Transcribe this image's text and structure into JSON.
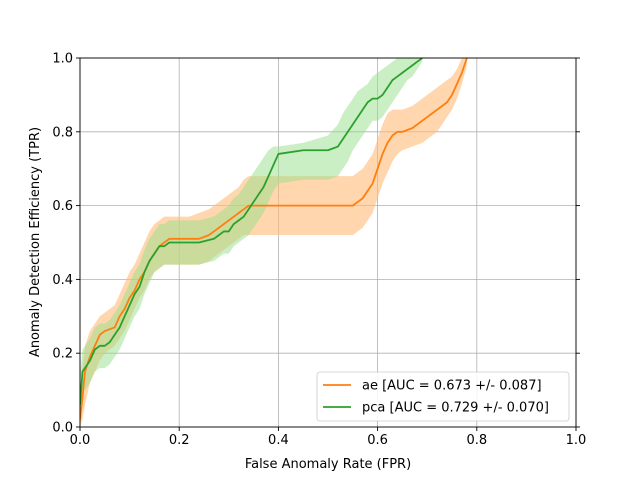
{
  "chart_data": {
    "type": "line",
    "xlabel": "False Anomaly Rate (FPR)",
    "ylabel": "Anomaly Detection Efficiency (TPR)",
    "xlim": [
      0.0,
      1.0
    ],
    "ylim": [
      0.0,
      1.0
    ],
    "xticks": [
      "0.0",
      "0.2",
      "0.4",
      "0.6",
      "0.8",
      "1.0"
    ],
    "yticks": [
      "0.0",
      "0.2",
      "0.4",
      "0.6",
      "0.8",
      "1.0"
    ],
    "grid": true,
    "legend_position": "lower-right",
    "series": [
      {
        "name": "ae [AUC = 0.673 +/- 0.087]",
        "color": "#ff7f0e",
        "band_color": "#ffbb78",
        "x": [
          0.0,
          0.005,
          0.01,
          0.02,
          0.03,
          0.04,
          0.05,
          0.07,
          0.08,
          0.09,
          0.1,
          0.11,
          0.12,
          0.13,
          0.14,
          0.15,
          0.16,
          0.17,
          0.18,
          0.2,
          0.22,
          0.24,
          0.26,
          0.27,
          0.28,
          0.29,
          0.3,
          0.31,
          0.32,
          0.33,
          0.34,
          0.36,
          0.4,
          0.5,
          0.55,
          0.56,
          0.57,
          0.58,
          0.59,
          0.6,
          0.61,
          0.62,
          0.63,
          0.64,
          0.65,
          0.67,
          0.69,
          0.7,
          0.71,
          0.72,
          0.73,
          0.74,
          0.75,
          0.76,
          0.77,
          0.78
        ],
        "y": [
          0.02,
          0.08,
          0.15,
          0.19,
          0.22,
          0.25,
          0.26,
          0.27,
          0.3,
          0.32,
          0.35,
          0.37,
          0.4,
          0.42,
          0.45,
          0.47,
          0.49,
          0.5,
          0.51,
          0.51,
          0.51,
          0.51,
          0.52,
          0.53,
          0.54,
          0.55,
          0.56,
          0.57,
          0.58,
          0.59,
          0.6,
          0.6,
          0.6,
          0.6,
          0.6,
          0.61,
          0.62,
          0.64,
          0.66,
          0.7,
          0.74,
          0.77,
          0.79,
          0.8,
          0.8,
          0.81,
          0.83,
          0.84,
          0.85,
          0.86,
          0.87,
          0.88,
          0.9,
          0.93,
          0.96,
          1.0
        ],
        "lower": [
          0.0,
          0.02,
          0.06,
          0.12,
          0.15,
          0.18,
          0.2,
          0.22,
          0.24,
          0.26,
          0.29,
          0.32,
          0.35,
          0.37,
          0.4,
          0.42,
          0.43,
          0.44,
          0.44,
          0.44,
          0.44,
          0.44,
          0.45,
          0.46,
          0.47,
          0.48,
          0.49,
          0.5,
          0.51,
          0.52,
          0.52,
          0.52,
          0.52,
          0.52,
          0.52,
          0.53,
          0.54,
          0.56,
          0.58,
          0.62,
          0.66,
          0.69,
          0.72,
          0.74,
          0.75,
          0.76,
          0.77,
          0.78,
          0.79,
          0.8,
          0.82,
          0.84,
          0.86,
          0.89,
          0.93,
          0.98
        ],
        "upper": [
          0.06,
          0.16,
          0.22,
          0.26,
          0.28,
          0.3,
          0.31,
          0.33,
          0.36,
          0.39,
          0.42,
          0.44,
          0.47,
          0.5,
          0.53,
          0.55,
          0.56,
          0.57,
          0.57,
          0.57,
          0.57,
          0.58,
          0.59,
          0.6,
          0.61,
          0.62,
          0.63,
          0.64,
          0.65,
          0.67,
          0.68,
          0.68,
          0.68,
          0.68,
          0.68,
          0.69,
          0.7,
          0.72,
          0.74,
          0.78,
          0.82,
          0.85,
          0.86,
          0.86,
          0.86,
          0.87,
          0.89,
          0.9,
          0.91,
          0.92,
          0.93,
          0.94,
          0.95,
          0.97,
          1.0,
          1.0
        ]
      },
      {
        "name": "pca [AUC = 0.729 +/- 0.070]",
        "color": "#2ca02c",
        "band_color": "#98df8a",
        "x": [
          0.0,
          0.005,
          0.01,
          0.02,
          0.03,
          0.04,
          0.05,
          0.06,
          0.07,
          0.08,
          0.09,
          0.1,
          0.11,
          0.12,
          0.13,
          0.14,
          0.15,
          0.16,
          0.17,
          0.18,
          0.2,
          0.24,
          0.27,
          0.28,
          0.29,
          0.3,
          0.31,
          0.32,
          0.33,
          0.34,
          0.35,
          0.36,
          0.37,
          0.38,
          0.39,
          0.4,
          0.45,
          0.5,
          0.52,
          0.53,
          0.54,
          0.55,
          0.56,
          0.57,
          0.58,
          0.59,
          0.6,
          0.61,
          0.62,
          0.63,
          0.64,
          0.65,
          0.66,
          0.67,
          0.68,
          0.69
        ],
        "y": [
          0.06,
          0.15,
          0.16,
          0.18,
          0.21,
          0.22,
          0.22,
          0.23,
          0.25,
          0.27,
          0.3,
          0.33,
          0.36,
          0.38,
          0.42,
          0.45,
          0.47,
          0.49,
          0.49,
          0.5,
          0.5,
          0.5,
          0.51,
          0.52,
          0.53,
          0.53,
          0.55,
          0.56,
          0.57,
          0.59,
          0.61,
          0.63,
          0.65,
          0.68,
          0.71,
          0.74,
          0.75,
          0.75,
          0.76,
          0.78,
          0.8,
          0.82,
          0.84,
          0.86,
          0.88,
          0.89,
          0.89,
          0.9,
          0.92,
          0.94,
          0.95,
          0.96,
          0.97,
          0.98,
          0.99,
          1.0
        ],
        "lower": [
          0.0,
          0.09,
          0.1,
          0.12,
          0.15,
          0.16,
          0.16,
          0.17,
          0.19,
          0.21,
          0.24,
          0.27,
          0.3,
          0.32,
          0.36,
          0.39,
          0.42,
          0.43,
          0.44,
          0.44,
          0.44,
          0.44,
          0.45,
          0.46,
          0.47,
          0.47,
          0.49,
          0.5,
          0.51,
          0.52,
          0.54,
          0.56,
          0.58,
          0.61,
          0.64,
          0.66,
          0.67,
          0.67,
          0.68,
          0.7,
          0.72,
          0.75,
          0.77,
          0.79,
          0.81,
          0.83,
          0.83,
          0.84,
          0.86,
          0.88,
          0.9,
          0.92,
          0.94,
          0.95,
          0.97,
          0.99
        ],
        "upper": [
          0.14,
          0.21,
          0.22,
          0.24,
          0.27,
          0.28,
          0.28,
          0.29,
          0.31,
          0.33,
          0.36,
          0.39,
          0.42,
          0.44,
          0.48,
          0.51,
          0.53,
          0.55,
          0.55,
          0.56,
          0.56,
          0.56,
          0.57,
          0.58,
          0.59,
          0.6,
          0.62,
          0.63,
          0.65,
          0.67,
          0.69,
          0.71,
          0.73,
          0.75,
          0.76,
          0.76,
          0.77,
          0.79,
          0.82,
          0.85,
          0.87,
          0.89,
          0.91,
          0.92,
          0.93,
          0.95,
          0.96,
          0.97,
          0.98,
          0.99,
          1.0,
          1.0,
          1.0,
          1.0,
          1.0,
          1.0
        ]
      }
    ]
  }
}
